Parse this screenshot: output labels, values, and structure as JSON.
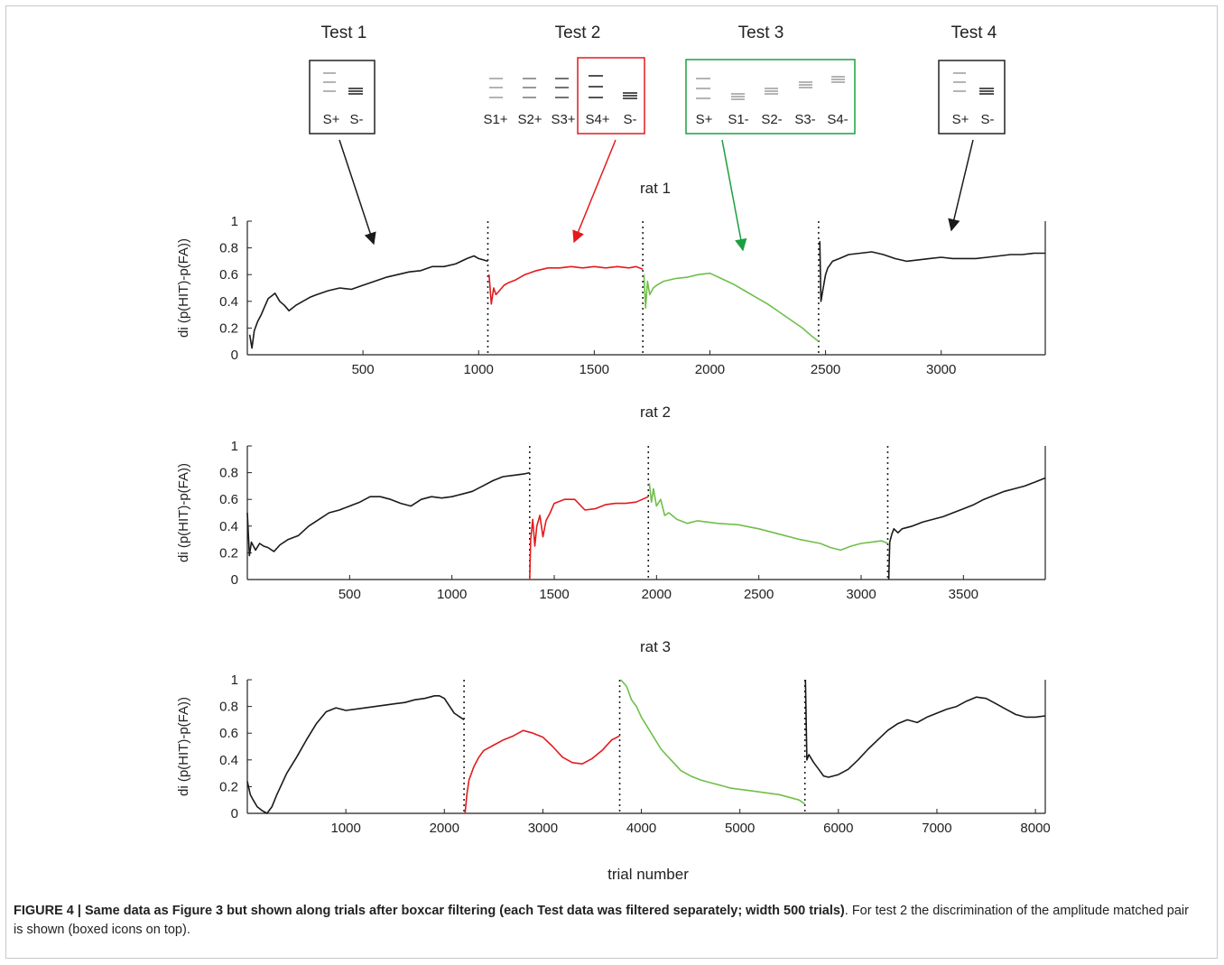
{
  "colors": {
    "test1": "#1a1a1a",
    "test2": "#e41a1c",
    "test3": "#6fbf4a",
    "test4": "#1a1a1a",
    "box2": "#e41a1c",
    "box3": "#1aa040",
    "grey": "#9a9a9a"
  },
  "tests": [
    {
      "title": "Test 1",
      "labels": [
        "S+",
        "S-"
      ]
    },
    {
      "title": "Test 2",
      "labels": [
        "S1+",
        "S2+",
        "S3+",
        "S4+",
        "S-"
      ]
    },
    {
      "title": "Test 3",
      "labels": [
        "S+",
        "S1-",
        "S2-",
        "S3-",
        "S4-"
      ]
    },
    {
      "title": "Test 4",
      "labels": [
        "S+",
        "S-"
      ]
    }
  ],
  "chart_data": [
    {
      "type": "line",
      "title": "rat 1",
      "ylabel": "di (p(HIT)-p(FA))",
      "xlim": [
        0,
        3450
      ],
      "ylim": [
        0,
        1
      ],
      "xticks": [
        500,
        1000,
        1500,
        2000,
        2500,
        3000
      ],
      "yticks": [
        0,
        0.2,
        0.4,
        0.6,
        0.8,
        1
      ],
      "test_boundaries": [
        1040,
        1710,
        2470
      ],
      "series": [
        {
          "test": 1,
          "x": [
            10,
            20,
            30,
            45,
            60,
            75,
            90,
            105,
            120,
            140,
            160,
            180,
            210,
            240,
            270,
            300,
            350,
            400,
            450,
            500,
            550,
            600,
            650,
            700,
            750,
            800,
            850,
            900,
            950,
            980,
            1000,
            1040
          ],
          "y": [
            0.15,
            0.05,
            0.18,
            0.25,
            0.3,
            0.36,
            0.42,
            0.44,
            0.46,
            0.4,
            0.37,
            0.33,
            0.37,
            0.4,
            0.43,
            0.45,
            0.48,
            0.5,
            0.49,
            0.52,
            0.55,
            0.58,
            0.6,
            0.62,
            0.63,
            0.66,
            0.66,
            0.68,
            0.72,
            0.74,
            0.72,
            0.7
          ]
        },
        {
          "test": 2,
          "x": [
            1045,
            1055,
            1065,
            1075,
            1090,
            1110,
            1130,
            1160,
            1200,
            1250,
            1300,
            1350,
            1400,
            1450,
            1500,
            1550,
            1600,
            1650,
            1680,
            1710
          ],
          "y": [
            0.6,
            0.38,
            0.5,
            0.45,
            0.48,
            0.52,
            0.54,
            0.56,
            0.6,
            0.63,
            0.65,
            0.65,
            0.66,
            0.65,
            0.66,
            0.65,
            0.66,
            0.65,
            0.66,
            0.64
          ]
        },
        {
          "test": 3,
          "x": [
            1715,
            1722,
            1730,
            1740,
            1755,
            1770,
            1800,
            1850,
            1900,
            1950,
            2000,
            2050,
            2100,
            2150,
            2200,
            2250,
            2300,
            2350,
            2400,
            2440,
            2470
          ],
          "y": [
            0.6,
            0.35,
            0.55,
            0.45,
            0.5,
            0.52,
            0.55,
            0.57,
            0.58,
            0.6,
            0.61,
            0.57,
            0.53,
            0.48,
            0.43,
            0.38,
            0.32,
            0.26,
            0.2,
            0.14,
            0.1
          ]
        },
        {
          "test": 4,
          "x": [
            2475,
            2480,
            2490,
            2500,
            2510,
            2530,
            2560,
            2600,
            2650,
            2700,
            2750,
            2800,
            2850,
            2900,
            2950,
            3000,
            3050,
            3100,
            3150,
            3200,
            3250,
            3300,
            3350,
            3400,
            3450
          ],
          "y": [
            0.85,
            0.4,
            0.5,
            0.6,
            0.65,
            0.7,
            0.72,
            0.75,
            0.76,
            0.77,
            0.75,
            0.72,
            0.7,
            0.71,
            0.72,
            0.73,
            0.72,
            0.72,
            0.72,
            0.73,
            0.74,
            0.75,
            0.75,
            0.76,
            0.76
          ]
        }
      ]
    },
    {
      "type": "line",
      "title": "rat 2",
      "ylabel": "di (p(HIT)-p(FA))",
      "xlim": [
        0,
        3900
      ],
      "ylim": [
        0,
        1
      ],
      "xticks": [
        500,
        1000,
        1500,
        2000,
        2500,
        3000,
        3500
      ],
      "yticks": [
        0,
        0.2,
        0.4,
        0.6,
        0.8,
        1
      ],
      "test_boundaries": [
        1380,
        1960,
        3130
      ],
      "series": [
        {
          "test": 1,
          "x": [
            0,
            10,
            20,
            40,
            60,
            80,
            100,
            130,
            160,
            200,
            250,
            300,
            350,
            400,
            450,
            500,
            550,
            600,
            650,
            700,
            750,
            800,
            850,
            900,
            950,
            1000,
            1050,
            1100,
            1150,
            1200,
            1250,
            1300,
            1350,
            1380
          ],
          "y": [
            0.5,
            0.18,
            0.28,
            0.22,
            0.27,
            0.25,
            0.24,
            0.21,
            0.26,
            0.3,
            0.33,
            0.4,
            0.45,
            0.5,
            0.52,
            0.55,
            0.58,
            0.62,
            0.62,
            0.6,
            0.57,
            0.55,
            0.6,
            0.62,
            0.61,
            0.62,
            0.64,
            0.66,
            0.7,
            0.74,
            0.77,
            0.78,
            0.79,
            0.8
          ]
        },
        {
          "test": 2,
          "x": [
            1380,
            1385,
            1395,
            1405,
            1415,
            1430,
            1445,
            1460,
            1480,
            1500,
            1550,
            1600,
            1650,
            1700,
            1750,
            1800,
            1850,
            1900,
            1930,
            1960
          ],
          "y": [
            0,
            0.3,
            0.45,
            0.25,
            0.4,
            0.48,
            0.32,
            0.44,
            0.5,
            0.57,
            0.6,
            0.6,
            0.52,
            0.53,
            0.56,
            0.57,
            0.57,
            0.58,
            0.6,
            0.62
          ]
        },
        {
          "test": 3,
          "x": [
            1965,
            1975,
            1985,
            2000,
            2020,
            2040,
            2060,
            2100,
            2150,
            2200,
            2300,
            2400,
            2500,
            2600,
            2700,
            2800,
            2850,
            2900,
            2950,
            3000,
            3050,
            3100,
            3130
          ],
          "y": [
            0.72,
            0.58,
            0.68,
            0.55,
            0.6,
            0.48,
            0.5,
            0.45,
            0.42,
            0.44,
            0.42,
            0.41,
            0.38,
            0.34,
            0.3,
            0.27,
            0.24,
            0.22,
            0.25,
            0.27,
            0.28,
            0.29,
            0.27
          ]
        },
        {
          "test": 4,
          "x": [
            3135,
            3140,
            3150,
            3160,
            3180,
            3200,
            3250,
            3300,
            3350,
            3400,
            3450,
            3500,
            3550,
            3600,
            3650,
            3700,
            3750,
            3800,
            3850,
            3900
          ],
          "y": [
            0,
            0.28,
            0.34,
            0.38,
            0.35,
            0.38,
            0.4,
            0.43,
            0.45,
            0.47,
            0.5,
            0.53,
            0.56,
            0.6,
            0.63,
            0.66,
            0.68,
            0.7,
            0.73,
            0.76
          ]
        }
      ]
    },
    {
      "type": "line",
      "title": "rat 3",
      "ylabel": "di (p(HIT)-p(FA))",
      "xlabel": "trial number",
      "xlim": [
        0,
        8100
      ],
      "ylim": [
        0,
        1
      ],
      "xticks": [
        1000,
        2000,
        3000,
        4000,
        5000,
        6000,
        7000,
        8000
      ],
      "yticks": [
        0,
        0.2,
        0.4,
        0.6,
        0.8,
        1
      ],
      "test_boundaries": [
        2200,
        3780,
        5660
      ],
      "series": [
        {
          "test": 1,
          "x": [
            0,
            30,
            60,
            100,
            150,
            200,
            250,
            300,
            400,
            500,
            600,
            700,
            800,
            900,
            1000,
            1100,
            1200,
            1300,
            1400,
            1500,
            1600,
            1700,
            1800,
            1900,
            1950,
            2000,
            2100,
            2200
          ],
          "y": [
            0.24,
            0.14,
            0.1,
            0.05,
            0.02,
            0,
            0.05,
            0.14,
            0.3,
            0.42,
            0.55,
            0.67,
            0.76,
            0.79,
            0.77,
            0.78,
            0.79,
            0.8,
            0.81,
            0.82,
            0.83,
            0.85,
            0.86,
            0.88,
            0.88,
            0.86,
            0.75,
            0.7
          ]
        },
        {
          "test": 2,
          "x": [
            2210,
            2230,
            2250,
            2300,
            2350,
            2400,
            2500,
            2600,
            2700,
            2800,
            2900,
            3000,
            3100,
            3200,
            3300,
            3400,
            3500,
            3600,
            3700,
            3780
          ],
          "y": [
            0,
            0.15,
            0.25,
            0.35,
            0.42,
            0.47,
            0.51,
            0.55,
            0.58,
            0.62,
            0.6,
            0.57,
            0.5,
            0.42,
            0.38,
            0.37,
            0.41,
            0.47,
            0.55,
            0.58
          ]
        },
        {
          "test": 3,
          "x": [
            3790,
            3850,
            3900,
            3950,
            4000,
            4100,
            4200,
            4300,
            4400,
            4500,
            4600,
            4700,
            4800,
            4900,
            5000,
            5100,
            5200,
            5300,
            5400,
            5500,
            5600,
            5660
          ],
          "y": [
            1,
            0.95,
            0.85,
            0.8,
            0.72,
            0.6,
            0.48,
            0.4,
            0.32,
            0.28,
            0.25,
            0.23,
            0.21,
            0.19,
            0.18,
            0.17,
            0.16,
            0.15,
            0.14,
            0.12,
            0.1,
            0.07
          ]
        },
        {
          "test": 4,
          "x": [
            5665,
            5680,
            5700,
            5750,
            5800,
            5850,
            5900,
            6000,
            6100,
            6200,
            6300,
            6400,
            6500,
            6600,
            6700,
            6800,
            6900,
            7000,
            7100,
            7200,
            7300,
            7400,
            7500,
            7600,
            7700,
            7800,
            7900,
            8000,
            8100
          ],
          "y": [
            1,
            0.4,
            0.44,
            0.38,
            0.33,
            0.28,
            0.27,
            0.29,
            0.33,
            0.4,
            0.48,
            0.55,
            0.62,
            0.67,
            0.7,
            0.68,
            0.72,
            0.75,
            0.78,
            0.8,
            0.84,
            0.87,
            0.86,
            0.82,
            0.78,
            0.74,
            0.72,
            0.72,
            0.73
          ]
        }
      ]
    }
  ],
  "caption": {
    "bold": "FIGURE 4 | Same data as Figure 3 but shown along trials after boxcar filtering (each Test data was filtered separately; width 500 trials)",
    "rest": ". For test 2 the discrimination of the amplitude matched pair is shown (boxed icons on top)."
  }
}
